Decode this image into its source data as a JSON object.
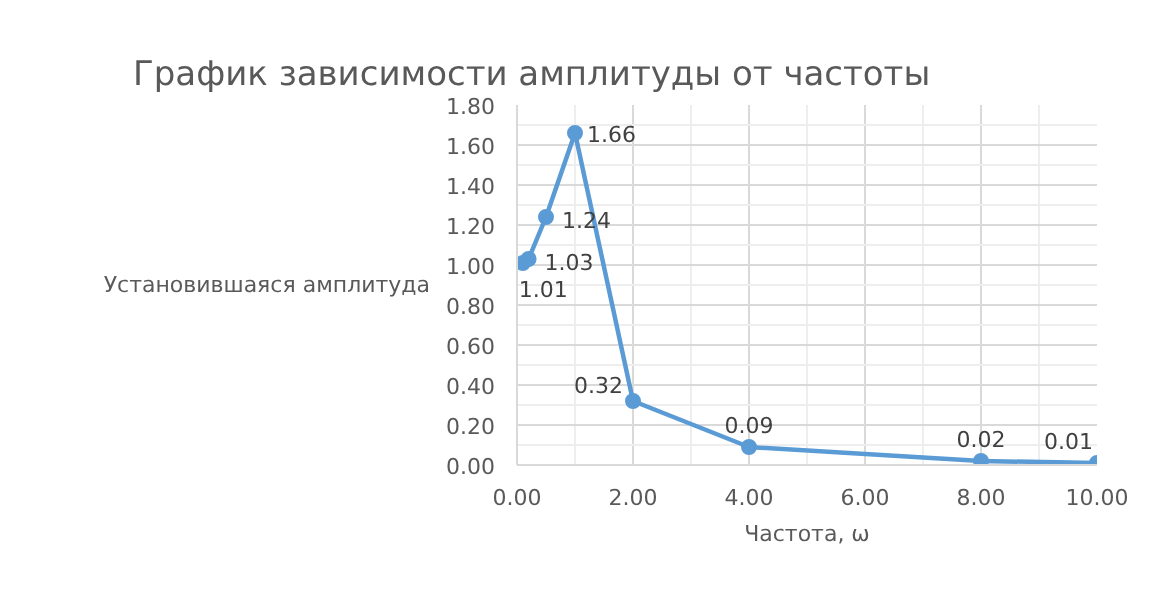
{
  "chart_data": {
    "type": "line",
    "title": "График зависимости амплитуды от частоты",
    "xlabel": "Частота, ω",
    "ylabel": "Установившаяся амплитуда",
    "x": [
      0.1,
      0.2,
      0.5,
      1,
      2,
      4,
      8,
      10
    ],
    "series": [
      {
        "color": "#5b9bd5",
        "values": [
          1.01,
          1.03,
          1.24,
          1.66,
          0.32,
          0.09,
          0.02,
          0.01
        ]
      }
    ],
    "xlim": [
      0,
      10
    ],
    "xticks": [
      {
        "value": 0,
        "label": "0.00"
      },
      {
        "value": 2,
        "label": "2.00"
      },
      {
        "value": 4,
        "label": "4.00"
      },
      {
        "value": 6,
        "label": "6.00"
      },
      {
        "value": 8,
        "label": "8.00"
      },
      {
        "value": 10,
        "label": "10.00"
      }
    ],
    "ylim": [
      0,
      1.8
    ],
    "yticks": [
      {
        "value": 0,
        "label": "0.00"
      },
      {
        "value": 0.2,
        "label": "0.20"
      },
      {
        "value": 0.4,
        "label": "0.40"
      },
      {
        "value": 0.6,
        "label": "0.60"
      },
      {
        "value": 0.8,
        "label": "0.80"
      },
      {
        "value": 1,
        "label": "1.00"
      },
      {
        "value": 1.2,
        "label": "1.20"
      },
      {
        "value": 1.4,
        "label": "1.40"
      },
      {
        "value": 1.6,
        "label": "1.60"
      },
      {
        "value": 1.8,
        "label": "1.80"
      }
    ],
    "grid": true,
    "marker": "circle",
    "line_style": "solid",
    "data_labels": true
  }
}
